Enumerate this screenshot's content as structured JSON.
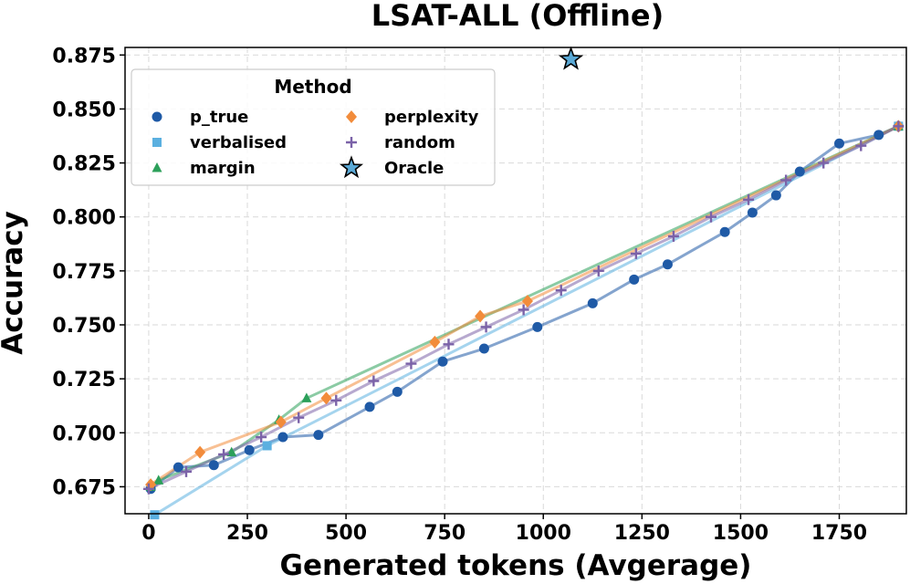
{
  "chart_data": {
    "type": "line",
    "title": "LSAT-ALL (Offline)",
    "xlabel": "Generated tokens (Avgerage)",
    "ylabel": "Accuracy",
    "xlim": [
      -60,
      1920
    ],
    "ylim": [
      0.6625,
      0.8785
    ],
    "xticks": [
      0,
      250,
      500,
      750,
      1000,
      1250,
      1500,
      1750
    ],
    "xtick_labels": [
      "0",
      "250",
      "500",
      "750",
      "1000",
      "1250",
      "1500",
      "1750"
    ],
    "yticks": [
      0.675,
      0.7,
      0.725,
      0.75,
      0.775,
      0.8,
      0.825,
      0.85,
      0.875
    ],
    "ytick_labels": [
      "0.675",
      "0.700",
      "0.725",
      "0.750",
      "0.775",
      "0.800",
      "0.825",
      "0.850",
      "0.875"
    ],
    "grid": true,
    "legend": {
      "title": "Method",
      "placement": "top-left",
      "columns": 2
    },
    "series": [
      {
        "name": "p_true",
        "marker": "circle",
        "color": "#1f5aa6",
        "x": [
          5,
          75,
          165,
          255,
          340,
          430,
          560,
          630,
          745,
          850,
          985,
          1125,
          1230,
          1315,
          1460,
          1530,
          1590,
          1650,
          1750,
          1850,
          1900
        ],
        "y": [
          0.674,
          0.684,
          0.685,
          0.692,
          0.698,
          0.699,
          0.712,
          0.719,
          0.733,
          0.739,
          0.749,
          0.76,
          0.771,
          0.778,
          0.793,
          0.802,
          0.81,
          0.821,
          0.834,
          0.838,
          0.842
        ]
      },
      {
        "name": "verbalised",
        "marker": "square",
        "color": "#5bb0e0",
        "x": [
          15,
          300,
          1900
        ],
        "y": [
          0.662,
          0.694,
          0.842
        ]
      },
      {
        "name": "margin",
        "marker": "triangle",
        "color": "#2ca05a",
        "x": [
          5,
          25,
          210,
          330,
          400,
          1900
        ],
        "y": [
          0.675,
          0.678,
          0.691,
          0.706,
          0.716,
          0.842
        ]
      },
      {
        "name": "perplexity",
        "marker": "diamond",
        "color": "#f28c3b",
        "x": [
          5,
          130,
          335,
          450,
          725,
          840,
          960,
          1900
        ],
        "y": [
          0.676,
          0.691,
          0.705,
          0.716,
          0.742,
          0.754,
          0.761,
          0.842
        ]
      },
      {
        "name": "random",
        "marker": "plus",
        "color": "#7b62a8",
        "x": [
          0,
          95,
          190,
          285,
          380,
          475,
          570,
          665,
          760,
          855,
          950,
          1045,
          1140,
          1235,
          1330,
          1425,
          1520,
          1615,
          1710,
          1805,
          1900
        ],
        "y": [
          0.674,
          0.682,
          0.69,
          0.698,
          0.707,
          0.715,
          0.724,
          0.732,
          0.741,
          0.749,
          0.757,
          0.766,
          0.775,
          0.783,
          0.791,
          0.8,
          0.808,
          0.817,
          0.825,
          0.833,
          0.842
        ]
      }
    ],
    "oracle": {
      "name": "Oracle",
      "marker": "star",
      "color": "#5aa9d6",
      "x": 1070,
      "y": 0.873
    }
  }
}
